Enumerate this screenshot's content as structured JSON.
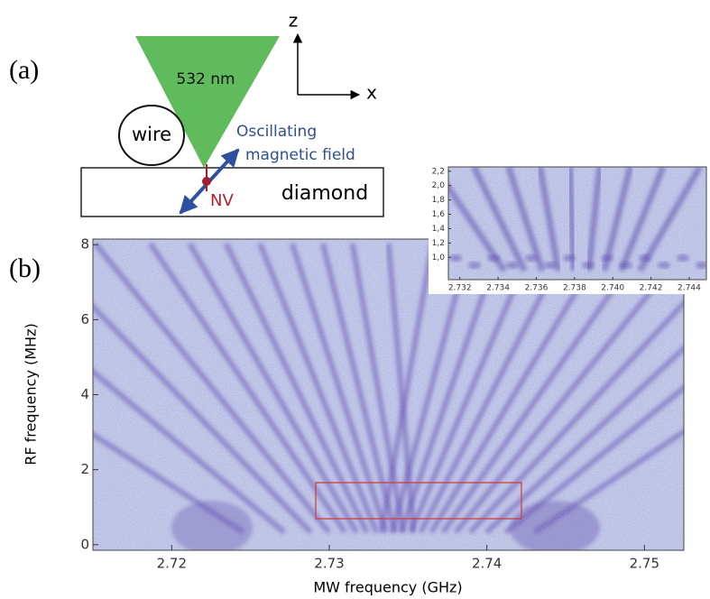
{
  "panel_a": {
    "label": "(a)",
    "laser": "532 nm",
    "wire": "wire",
    "field": [
      "Oscillating",
      "magnetic field"
    ],
    "nv": "NV",
    "diamond": "diamond",
    "axes": {
      "z": "z",
      "x": "x"
    }
  },
  "panel_b": {
    "label": "(b)",
    "type": "heatmap",
    "xlabel": "MW frequency (GHz)",
    "ylabel": "RF frequency (MHz)",
    "xlim": [
      2.715,
      2.7525
    ],
    "ylim": [
      -0.15,
      8.15
    ],
    "xticks": [
      2.72,
      2.73,
      2.74,
      2.75
    ],
    "yticks": [
      0,
      2,
      4,
      6,
      8
    ],
    "inset": {
      "xlim": [
        2.7314,
        2.7449
      ],
      "ylim": [
        0.69,
        2.26
      ],
      "xticks": [
        2.732,
        2.734,
        2.736,
        2.738,
        {
          "value": 2.74,
          "label": "2.740"
        },
        2.742,
        2.744
      ],
      "yticks": [
        {
          "value": 2.2,
          "label": "2,2"
        },
        {
          "value": 2.0,
          "label": "2,0"
        },
        {
          "value": 1.8,
          "label": "1,8"
        },
        {
          "value": 1.6,
          "label": "1,6"
        },
        {
          "value": 1.4,
          "label": "1,4"
        },
        {
          "value": 1.2,
          "label": "1,2"
        },
        {
          "value": 1.0,
          "label": "1,0"
        }
      ]
    }
  }
}
